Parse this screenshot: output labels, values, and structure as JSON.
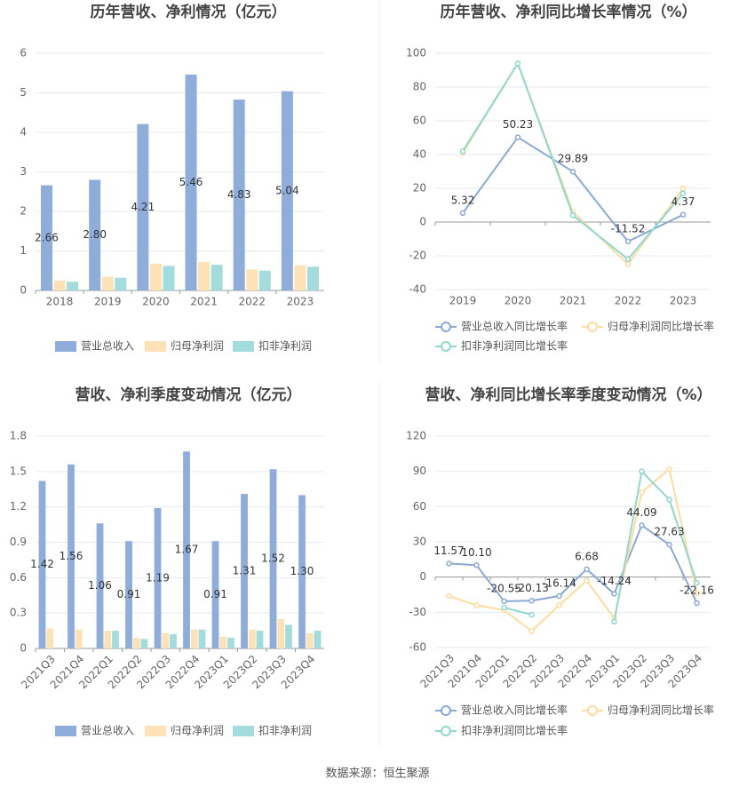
{
  "chart_data": [
    {
      "type": "bar",
      "title": "历年营收、净利情况（亿元）",
      "categories": [
        "2018",
        "2019",
        "2020",
        "2021",
        "2022",
        "2023"
      ],
      "series": [
        {
          "name": "营业总收入",
          "color": "#8eaddb",
          "values": [
            2.66,
            2.8,
            4.21,
            5.46,
            4.83,
            5.04
          ],
          "value_labels": [
            "2.66",
            "2.80",
            "4.21",
            "5.46",
            "4.83",
            "5.04"
          ]
        },
        {
          "name": "归母净利润",
          "color": "#fde2b6",
          "values": [
            0.25,
            0.35,
            0.68,
            0.72,
            0.53,
            0.64
          ]
        },
        {
          "name": "扣非净利润",
          "color": "#a3dcdc",
          "values": [
            0.22,
            0.32,
            0.62,
            0.65,
            0.5,
            0.6
          ]
        }
      ],
      "ylim": [
        0,
        6
      ],
      "yticks": [
        0,
        1,
        2,
        3,
        4,
        5,
        6
      ],
      "grid": true
    },
    {
      "type": "line",
      "title": "历年营收、净利同比增长率情况（%）",
      "categories": [
        "2019",
        "2020",
        "2021",
        "2022",
        "2023"
      ],
      "series": [
        {
          "name": "营业总收入同比增长率",
          "color": "#8ba9d6",
          "values": [
            5.32,
            50.23,
            29.89,
            -11.52,
            4.37
          ],
          "value_labels": [
            "5.32",
            "50.23",
            "29.89",
            "-11.52",
            "4.37"
          ]
        },
        {
          "name": "归母净利润同比增长率",
          "color": "#fddc9c",
          "values": [
            41,
            94,
            6,
            -25,
            20
          ]
        },
        {
          "name": "扣非净利润同比增长率",
          "color": "#8fd8d0",
          "values": [
            42,
            94,
            4,
            -22,
            17
          ]
        }
      ],
      "ylim": [
        -40,
        100
      ],
      "yticks": [
        -40,
        -20,
        0,
        20,
        40,
        60,
        80,
        100
      ],
      "grid": true
    },
    {
      "type": "bar",
      "title": "营收、净利季度变动情况（亿元）",
      "categories": [
        "2021Q3",
        "2021Q4",
        "2022Q1",
        "2022Q2",
        "2022Q3",
        "2022Q4",
        "2023Q1",
        "2023Q2",
        "2023Q3",
        "2023Q4"
      ],
      "series": [
        {
          "name": "营业总收入",
          "color": "#8eaddb",
          "values": [
            1.42,
            1.56,
            1.06,
            0.91,
            1.19,
            1.67,
            0.91,
            1.31,
            1.52,
            1.3
          ],
          "value_labels": [
            "1.42",
            "1.56",
            "1.06",
            "0.91",
            "1.19",
            "1.67",
            "0.91",
            "1.31",
            "1.52",
            "1.30"
          ]
        },
        {
          "name": "归母净利润",
          "color": "#fde2b6",
          "values": [
            0.17,
            0.16,
            0.15,
            0.09,
            0.13,
            0.16,
            0.1,
            0.16,
            0.25,
            0.13
          ]
        },
        {
          "name": "扣非净利润",
          "color": "#a3dcdc",
          "values": [
            null,
            null,
            0.15,
            0.08,
            0.12,
            0.16,
            0.09,
            0.15,
            0.2,
            0.15
          ]
        }
      ],
      "ylim": [
        0,
        1.8
      ],
      "yticks": [
        0,
        0.3,
        0.6,
        0.9,
        1.2,
        1.5,
        1.8
      ],
      "grid": true
    },
    {
      "type": "line",
      "title": "营收、净利同比增长率季度变动情况（%）",
      "categories": [
        "2021Q3",
        "2021Q4",
        "2022Q1",
        "2022Q2",
        "2022Q3",
        "2022Q4",
        "2023Q1",
        "2023Q2",
        "2023Q3",
        "2023Q4"
      ],
      "series": [
        {
          "name": "营业总收入同比增长率",
          "color": "#8ba9d6",
          "values": [
            11.57,
            10.1,
            -20.55,
            -20.13,
            -16.14,
            6.68,
            -14.24,
            44.09,
            27.63,
            -22.16
          ],
          "value_labels": [
            "11.57",
            "10.10",
            "-20.55",
            "-20.13",
            "-16.14",
            "6.68",
            "-14.24",
            "44.09",
            "27.63",
            "-22.16"
          ]
        },
        {
          "name": "归母净利润同比增长率",
          "color": "#fddc9c",
          "values": [
            -16,
            -24,
            -28,
            -46,
            -24,
            -3,
            -35,
            72,
            92,
            -14
          ]
        },
        {
          "name": "扣非净利润同比增长率",
          "color": "#8fd8d0",
          "values": [
            null,
            null,
            -26,
            -32,
            null,
            null,
            -38,
            90,
            66,
            -5
          ]
        }
      ],
      "ylim": [
        -60,
        120
      ],
      "yticks": [
        -60,
        -30,
        0,
        30,
        60,
        90,
        120
      ],
      "grid": true
    }
  ],
  "footer": "数据来源：恒生聚源"
}
